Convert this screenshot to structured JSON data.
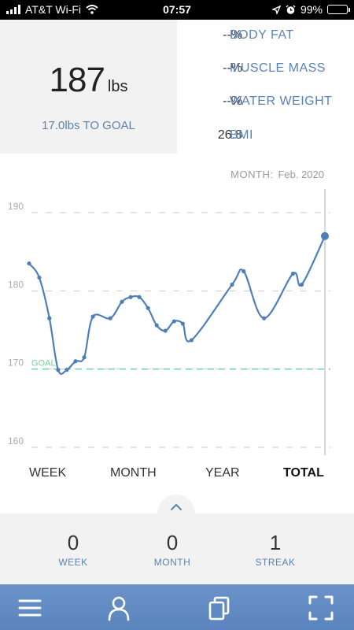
{
  "status_bar": {
    "carrier": "AT&T Wi-Fi",
    "time": "07:57",
    "battery": "99%"
  },
  "summary": {
    "weight_value": "187",
    "weight_unit": "lbs",
    "to_goal": "17.0lbs TO GOAL"
  },
  "metrics": [
    {
      "value": "--%",
      "label": "BODY FAT"
    },
    {
      "value": "--%",
      "label": "MUSCLE MASS"
    },
    {
      "value": "--%",
      "label": "WATER WEIGHT"
    },
    {
      "value": "26.8",
      "label": "BMI"
    }
  ],
  "month_selector": {
    "label": "MONTH:",
    "value": "Feb. 2020"
  },
  "chart_data": {
    "type": "line",
    "ylim": [
      160,
      190
    ],
    "yticks": [
      "190",
      "180",
      "170",
      "160"
    ],
    "goal_value": 170,
    "goal_label": "GOAL",
    "series": [
      {
        "values": [
          {
            "x": 0,
            "y": 183.5
          },
          {
            "x": 3.5,
            "y": 181.7
          },
          {
            "x": 7,
            "y": 176.5
          },
          {
            "x": 10,
            "y": 169.9
          },
          {
            "x": 13,
            "y": 169.9
          },
          {
            "x": 16,
            "y": 171
          },
          {
            "x": 19,
            "y": 171.5
          },
          {
            "x": 22,
            "y": 176.7
          },
          {
            "x": 28,
            "y": 176.5
          },
          {
            "x": 32,
            "y": 178.6
          },
          {
            "x": 35,
            "y": 179.2
          },
          {
            "x": 38,
            "y": 179.2
          },
          {
            "x": 41,
            "y": 177.8
          },
          {
            "x": 44,
            "y": 175.6
          },
          {
            "x": 47,
            "y": 174.9
          },
          {
            "x": 50,
            "y": 176.1
          },
          {
            "x": 53,
            "y": 175.8
          },
          {
            "x": 56,
            "y": 173.7
          },
          {
            "x": 70,
            "y": 180.8
          },
          {
            "x": 74,
            "y": 182.5
          },
          {
            "x": 81,
            "y": 176.5
          },
          {
            "x": 91,
            "y": 182.2
          },
          {
            "x": 94,
            "y": 180.8
          },
          {
            "x": 102,
            "y": 187
          }
        ]
      }
    ],
    "x_range": [
      0,
      102
    ]
  },
  "range_tabs": [
    {
      "label": "WEEK",
      "active": false
    },
    {
      "label": "MONTH",
      "active": false
    },
    {
      "label": "YEAR",
      "active": false
    },
    {
      "label": "TOTAL",
      "active": true
    }
  ],
  "stats": [
    {
      "value": "0",
      "label": "WEEK"
    },
    {
      "value": "0",
      "label": "MONTH"
    },
    {
      "value": "1",
      "label": "STREAK"
    }
  ],
  "colors": {
    "accent": "#5a83b5",
    "line": "#4f7fb8",
    "goal": "#6ed39a",
    "tabbar": "#5f89c2"
  },
  "icons": {
    "tabbar": [
      "menu-icon",
      "profile-icon",
      "copy-icon",
      "fullscreen-icon"
    ]
  }
}
